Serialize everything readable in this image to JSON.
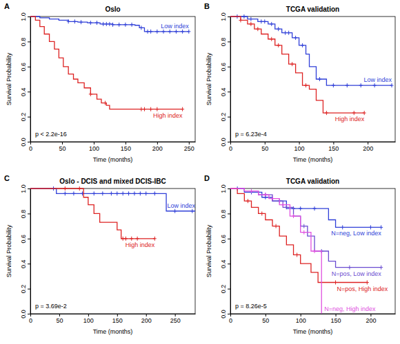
{
  "chart_data": [
    {
      "type": "line",
      "panel_label": "A",
      "title": "Oslo",
      "annotation": "p < 2.2e-16",
      "x_label": "Time (months)",
      "y_label": "Survival Probability",
      "line_style": "step",
      "marker": "plus",
      "xlim": [
        0,
        260
      ],
      "xticks": [
        0,
        50,
        100,
        150,
        200,
        250
      ],
      "ylim": [
        0,
        1
      ],
      "yticks": [
        {
          "value": 0,
          "label": "0.0"
        },
        0.2,
        0.4,
        0.6,
        0.8,
        {
          "value": 1,
          "label": "1.0"
        }
      ],
      "series": [
        {
          "name": "Low index",
          "color": "#2f3fd8",
          "x": [
            0,
            15,
            30,
            45,
            60,
            75,
            90,
            110,
            130,
            165,
            172,
            180,
            250
          ],
          "values": [
            1,
            0.99,
            0.98,
            0.97,
            0.96,
            0.955,
            0.95,
            0.94,
            0.935,
            0.93,
            0.91,
            0.88,
            0.88
          ],
          "censored": [
            60,
            70,
            80,
            95,
            105,
            115,
            120,
            125,
            130,
            140,
            150,
            160,
            175,
            185,
            190,
            200,
            210,
            220,
            230,
            240,
            250
          ]
        },
        {
          "name": "High index",
          "color": "#dd2222",
          "x": [
            0,
            8,
            15,
            22,
            30,
            38,
            45,
            52,
            60,
            68,
            75,
            85,
            95,
            105,
            112,
            120,
            125,
            240
          ],
          "values": [
            1,
            0.97,
            0.92,
            0.86,
            0.8,
            0.74,
            0.67,
            0.6,
            0.54,
            0.5,
            0.47,
            0.43,
            0.38,
            0.34,
            0.31,
            0.29,
            0.26,
            0.26
          ],
          "censored": [
            95,
            118,
            175,
            180,
            190,
            200,
            240
          ]
        }
      ]
    },
    {
      "type": "line",
      "panel_label": "B",
      "title": "TCGA validation",
      "annotation": "p = 6.23e-4",
      "x_label": "Time (months)",
      "y_label": "Survival Probability",
      "line_style": "step",
      "marker": "plus",
      "xlim": [
        0,
        240
      ],
      "xticks": [
        0,
        50,
        100,
        150,
        200
      ],
      "ylim": [
        0,
        1
      ],
      "yticks": [
        {
          "value": 0,
          "label": "0.0"
        },
        0.2,
        0.4,
        0.6,
        0.8,
        {
          "value": 1,
          "label": "1.0"
        }
      ],
      "series": [
        {
          "name": "Low index",
          "color": "#2f3fd8",
          "x": [
            0,
            25,
            40,
            55,
            65,
            75,
            90,
            100,
            110,
            115,
            125,
            140,
            235
          ],
          "values": [
            1,
            0.98,
            0.96,
            0.94,
            0.9,
            0.87,
            0.83,
            0.77,
            0.7,
            0.6,
            0.5,
            0.45,
            0.45
          ],
          "censored": [
            10,
            20,
            30,
            45,
            50,
            60,
            70,
            80,
            85,
            95,
            105,
            130,
            150,
            170,
            190,
            210,
            235
          ]
        },
        {
          "name": "High index",
          "color": "#dd2222",
          "x": [
            0,
            15,
            25,
            35,
            45,
            55,
            65,
            75,
            85,
            95,
            105,
            115,
            125,
            135,
            195
          ],
          "values": [
            1,
            0.97,
            0.94,
            0.9,
            0.86,
            0.82,
            0.77,
            0.7,
            0.62,
            0.55,
            0.45,
            0.42,
            0.33,
            0.23,
            0.23
          ],
          "censored": [
            15,
            30,
            40,
            60,
            70,
            90,
            110,
            140,
            180,
            195
          ]
        }
      ]
    },
    {
      "type": "line",
      "panel_label": "C",
      "title": "Oslo - DCIS and mixed DCIS-IBC",
      "annotation": "p = 3.69e-2",
      "x_label": "Time (months)",
      "y_label": "Survival Probability",
      "line_style": "step",
      "marker": "plus",
      "xlim": [
        0,
        285
      ],
      "xticks": [
        0,
        50,
        100,
        150,
        200,
        250
      ],
      "ylim": [
        0,
        1
      ],
      "yticks": [
        {
          "value": 0,
          "label": "0.0"
        },
        0.2,
        0.4,
        0.6,
        0.8,
        {
          "value": 1,
          "label": "1.0"
        }
      ],
      "series": [
        {
          "name": "Low index",
          "color": "#2f3fd8",
          "x": [
            0,
            45,
            235,
            285
          ],
          "values": [
            1,
            0.96,
            0.82,
            0.82
          ],
          "censored": [
            40,
            60,
            75,
            90,
            110,
            125,
            140,
            150,
            160,
            170,
            180,
            190,
            200,
            215,
            250,
            280
          ]
        },
        {
          "name": "High index",
          "color": "#dd2222",
          "x": [
            0,
            92,
            100,
            110,
            120,
            150,
            157,
            215
          ],
          "values": [
            1,
            0.93,
            0.87,
            0.8,
            0.73,
            0.67,
            0.6,
            0.6
          ],
          "censored": [
            60,
            85,
            160,
            165,
            175,
            185,
            215
          ]
        }
      ]
    },
    {
      "type": "line",
      "panel_label": "D",
      "title": "TCGA validation",
      "annotation": "p = 8.26e-5",
      "x_label": "Time (months)",
      "y_label": "Survival Probability",
      "line_style": "step",
      "marker": "plus",
      "xlim": [
        0,
        235
      ],
      "xticks": [
        0,
        50,
        100,
        150,
        200
      ],
      "ylim": [
        0,
        1
      ],
      "yticks": [
        {
          "value": 0,
          "label": "0.0"
        },
        0.2,
        0.4,
        0.6,
        0.8,
        {
          "value": 1,
          "label": "1.0"
        }
      ],
      "series": [
        {
          "name": "N=neg, Low index",
          "color": "#2f3fd8",
          "x": [
            0,
            20,
            45,
            60,
            80,
            140,
            150,
            215
          ],
          "values": [
            1,
            0.97,
            0.93,
            0.9,
            0.84,
            0.75,
            0.69,
            0.69
          ],
          "censored": [
            10,
            30,
            50,
            70,
            90,
            100,
            120,
            160,
            200,
            215
          ]
        },
        {
          "name": "N=pos, Low index",
          "color": "#6a4bd0",
          "x": [
            0,
            20,
            40,
            60,
            75,
            90,
            100,
            110,
            120,
            140,
            150,
            215
          ],
          "values": [
            1,
            0.98,
            0.95,
            0.9,
            0.85,
            0.78,
            0.7,
            0.62,
            0.5,
            0.42,
            0.37,
            0.37
          ],
          "censored": [
            30,
            50,
            80,
            105,
            130,
            170,
            215
          ]
        },
        {
          "name": "N=pos, High index",
          "color": "#dd2222",
          "x": [
            0,
            10,
            20,
            30,
            40,
            50,
            60,
            70,
            80,
            90,
            100,
            115,
            125,
            195
          ],
          "values": [
            1,
            0.96,
            0.9,
            0.85,
            0.8,
            0.75,
            0.7,
            0.62,
            0.55,
            0.47,
            0.4,
            0.33,
            0.25,
            0.25
          ],
          "censored": [
            25,
            45,
            65,
            95,
            150,
            195
          ]
        },
        {
          "name": "N=neg, High index",
          "color": "#e050e0",
          "x": [
            0,
            20,
            40,
            55,
            70,
            85,
            100,
            115,
            130
          ],
          "values": [
            1,
            0.98,
            0.95,
            0.92,
            0.87,
            0.78,
            0.65,
            0.5,
            0
          ],
          "censored": [
            30,
            50,
            60,
            75,
            90,
            105,
            120
          ]
        }
      ]
    }
  ]
}
